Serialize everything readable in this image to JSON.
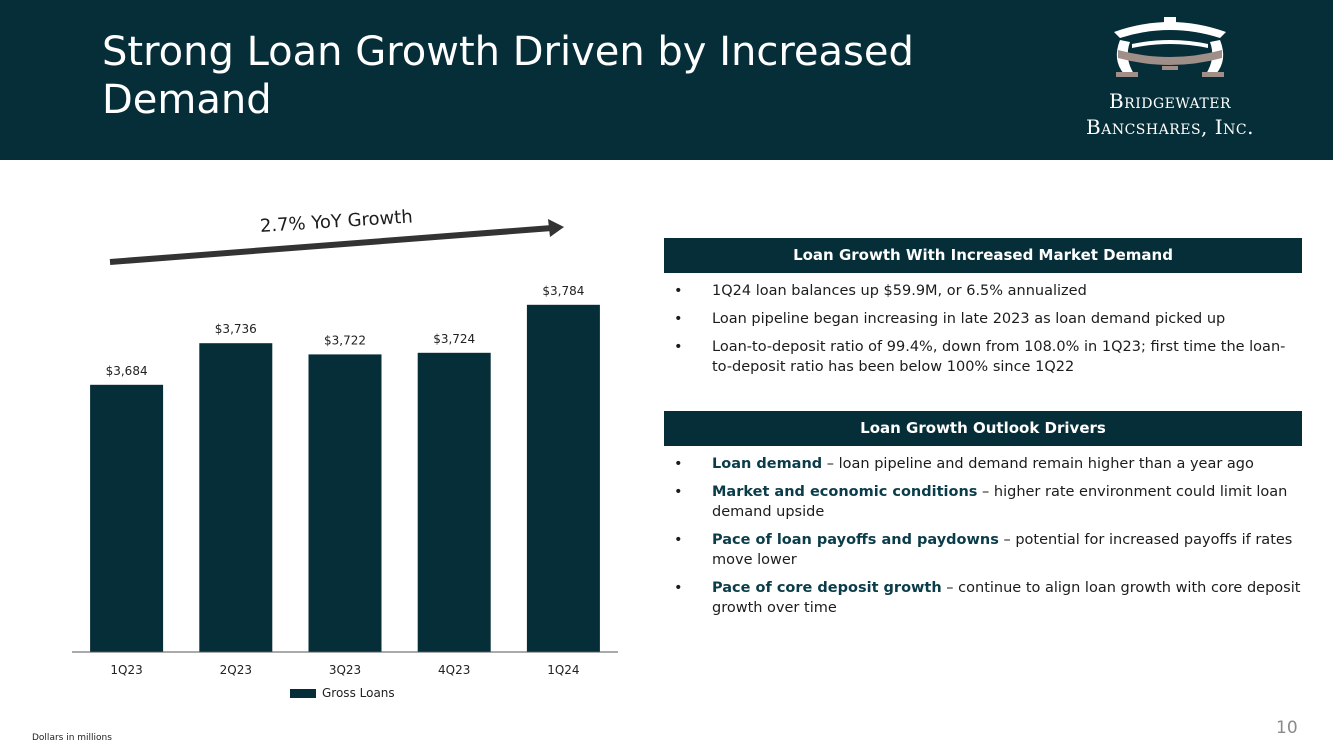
{
  "header": {
    "title": "Strong Loan Growth Driven by Increased Demand",
    "logo_line1": "Bridgewater",
    "logo_line2": "Bancshares, Inc."
  },
  "chart_data": {
    "type": "bar",
    "categories": [
      "1Q23",
      "2Q23",
      "3Q23",
      "4Q23",
      "1Q24"
    ],
    "values": [
      3684,
      3736,
      3722,
      3724,
      3784
    ],
    "data_labels": [
      "$3,684",
      "$3,736",
      "$3,722",
      "$3,724",
      "$3,784"
    ],
    "series": [
      {
        "name": "Gross Loans",
        "values": [
          3684,
          3736,
          3722,
          3724,
          3784
        ]
      }
    ],
    "annotation": "2.7% YoY Growth",
    "legend": "bottom-center",
    "grid": false,
    "bar_color": "#062e38"
  },
  "panels": [
    {
      "heading": "Loan Growth With Increased Market Demand",
      "bullets": [
        {
          "lead": "",
          "text": "1Q24 loan balances up $59.9M, or 6.5% annualized"
        },
        {
          "lead": "",
          "text": "Loan pipeline began increasing in late 2023 as loan demand picked up"
        },
        {
          "lead": "",
          "text": "Loan-to-deposit ratio of 99.4%, down from 108.0% in 1Q23; first time the loan-to-deposit ratio has been below 100% since 1Q22"
        }
      ]
    },
    {
      "heading": "Loan Growth Outlook Drivers",
      "bullets": [
        {
          "lead": "Loan demand",
          "text": " – loan pipeline and demand remain higher than a year ago"
        },
        {
          "lead": "Market and economic conditions",
          "text": " – higher rate environment could limit loan demand upside"
        },
        {
          "lead": "Pace of loan payoffs and paydowns",
          "text": " – potential for increased payoffs if rates move lower"
        },
        {
          "lead": "Pace of core deposit growth",
          "text": " – continue to align loan growth with core deposit growth over time"
        }
      ]
    }
  ],
  "footer": {
    "note": "Dollars in millions",
    "page_number": "10"
  },
  "colors": {
    "brand_dark": "#062e38",
    "accent_lead": "#0b3c4a",
    "logo_taupe": "#a08e88"
  }
}
